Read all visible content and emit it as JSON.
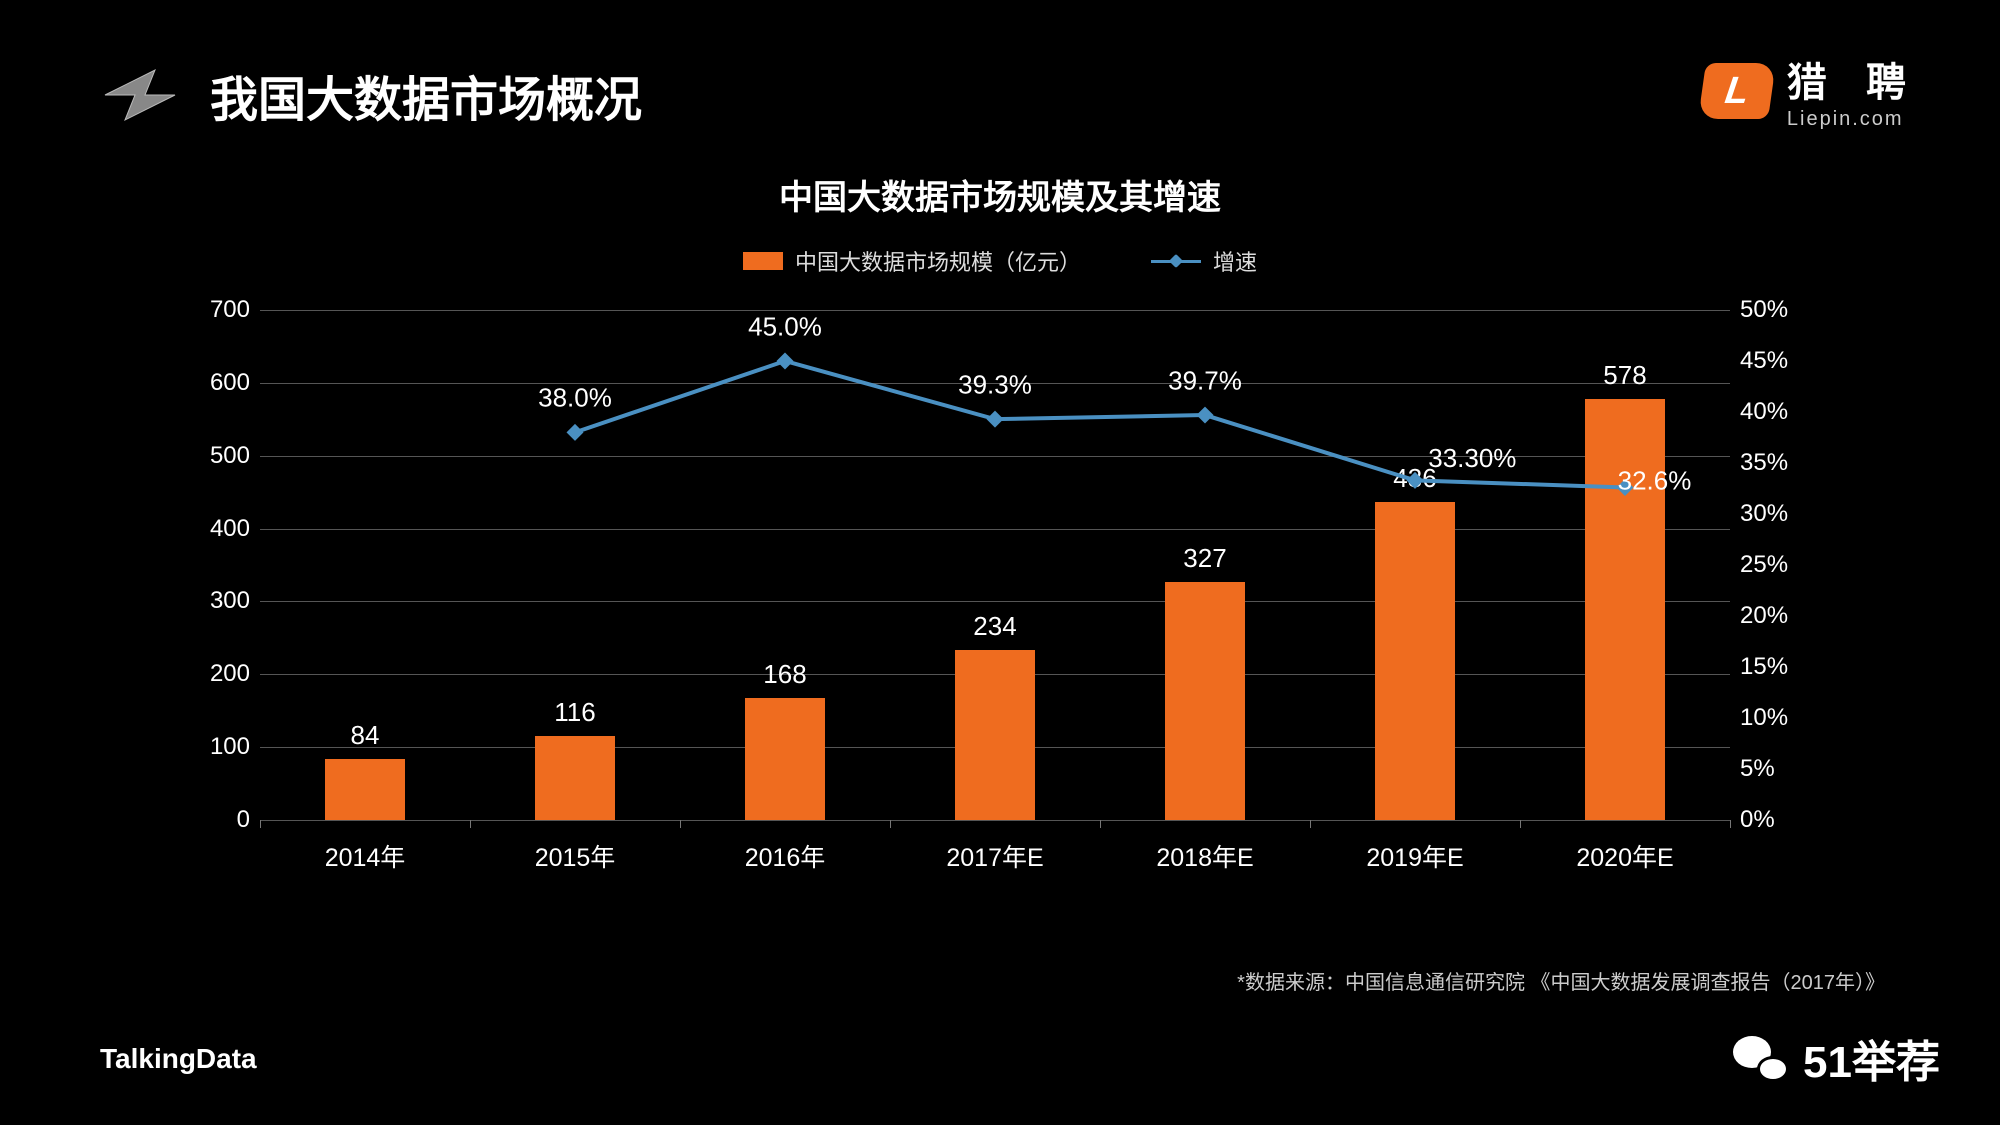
{
  "header": {
    "title": "我国大数据市场概况"
  },
  "logo": {
    "mark": "L",
    "cn": "猎 聘",
    "en": "Liepin.com"
  },
  "chart": {
    "title": "中国大数据市场规模及其增速",
    "legend_bar": "中国大数据市场规模（亿元）",
    "legend_line": "增速",
    "categories": [
      "2014年",
      "2015年",
      "2016年",
      "2017年E",
      "2018年E",
      "2019年E",
      "2020年E"
    ],
    "bar_values": [
      84,
      116,
      168,
      234,
      327,
      436,
      578
    ],
    "bar_labels": [
      "84",
      "116",
      "168",
      "234",
      "327",
      "436",
      "578"
    ],
    "line_values": [
      null,
      38.0,
      45.0,
      39.3,
      39.7,
      33.3,
      32.6
    ],
    "line_labels": [
      null,
      "38.0%",
      "45.0%",
      "39.3%",
      "39.7%",
      "33.30%",
      "32.6%"
    ],
    "y_left": {
      "min": 0,
      "max": 700,
      "step": 100
    },
    "y_right": {
      "min": 0,
      "max": 50,
      "step": 5,
      "suffix": "%"
    },
    "bar_color": "#ef6c1f",
    "line_color": "#4a90c2",
    "grid_color": "#555555",
    "background_color": "#000000",
    "label_fontsize": 26,
    "axis_fontsize": 24,
    "bar_width_ratio": 0.38
  },
  "source": "*数据来源：中国信息通信研究院 《中国大数据发展调查报告（2017年）》",
  "footer": {
    "left": "TalkingData",
    "right": "51举荐"
  }
}
